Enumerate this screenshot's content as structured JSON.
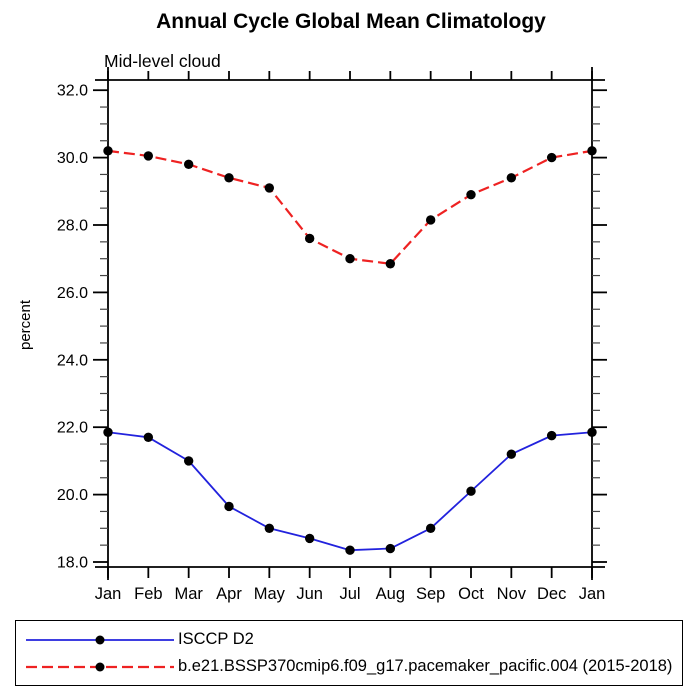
{
  "chart_data": {
    "type": "line",
    "title": "Annual Cycle Global Mean Climatology",
    "subtitle": "Mid-level cloud",
    "xlabel": "",
    "ylabel": "percent",
    "categories": [
      "Jan",
      "Feb",
      "Mar",
      "Apr",
      "May",
      "Jun",
      "Jul",
      "Aug",
      "Sep",
      "Oct",
      "Nov",
      "Dec",
      "Jan"
    ],
    "ylim": [
      17.8,
      32.35
    ],
    "yticks": [
      18.0,
      20.0,
      22.0,
      24.0,
      26.0,
      28.0,
      30.0,
      32.0
    ],
    "ytick_decimals": 1,
    "minor_tick_interval": 0.5,
    "grid": false,
    "legend_position": "bottom-box",
    "axis_color": "#000000",
    "marker": "filled-circle",
    "marker_color": "#000000",
    "series": [
      {
        "name": "ISCCP D2",
        "color": "#2222dd",
        "line_style": "solid",
        "values": [
          21.85,
          21.7,
          21.0,
          19.65,
          19.0,
          18.7,
          18.35,
          18.4,
          19.0,
          20.1,
          21.2,
          21.75,
          21.85
        ]
      },
      {
        "name": "b.e21.BSSP370cmip6.f09_g17.pacemaker_pacific.004 (2015-2018)",
        "color": "#ee2222",
        "line_style": "dashed",
        "values": [
          30.2,
          30.05,
          29.8,
          29.4,
          29.1,
          27.6,
          27.0,
          26.85,
          28.15,
          28.9,
          29.4,
          30.0,
          30.2
        ]
      }
    ]
  }
}
